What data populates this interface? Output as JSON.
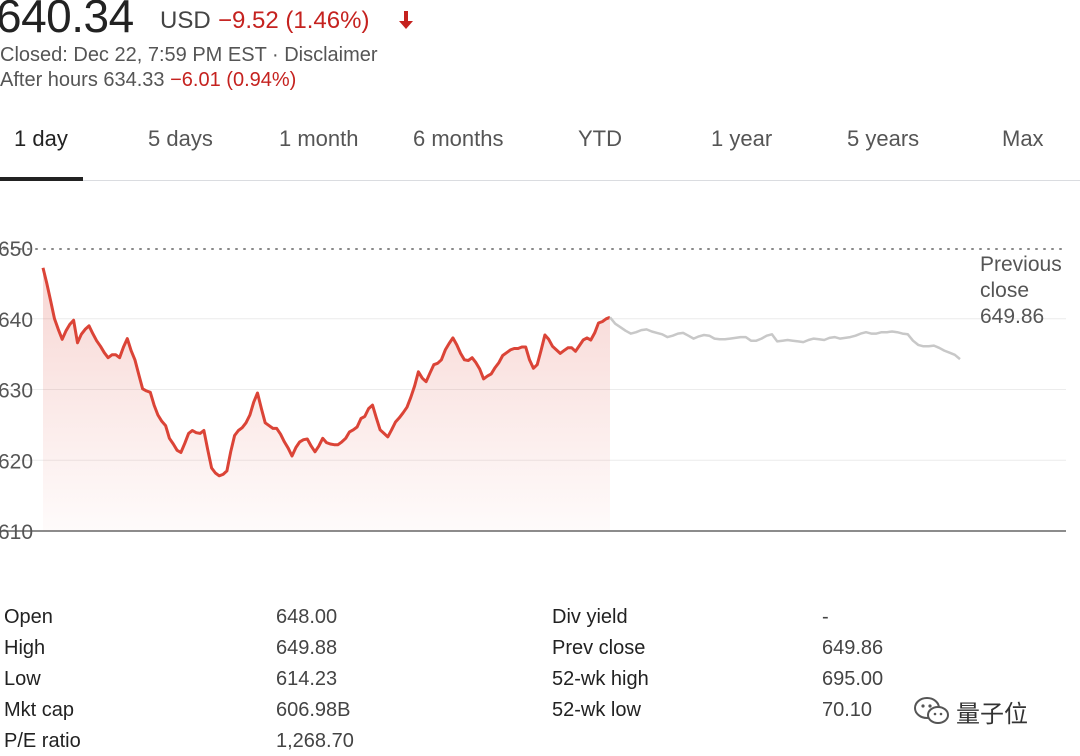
{
  "quote": {
    "price": "640.34",
    "currency": "USD",
    "change": "−9.52 (1.46%)",
    "direction_icon": "arrow-down-icon",
    "status": "Closed: Dec 22, 7:59 PM EST · Disclaimer",
    "after_hours_label": "After hours 634.33",
    "after_hours_change": "−6.01 (0.94%)"
  },
  "tabs": [
    {
      "label": "1 day",
      "active": true
    },
    {
      "label": "5 days"
    },
    {
      "label": "1 month"
    },
    {
      "label": "6 months"
    },
    {
      "label": "YTD"
    },
    {
      "label": "1 year"
    },
    {
      "label": "5 years"
    },
    {
      "label": "Max"
    }
  ],
  "chart_data": {
    "type": "line",
    "y_ticks": [
      "650",
      "640",
      "630",
      "620",
      "610"
    ],
    "ylim": [
      610,
      650
    ],
    "grid": true,
    "reference_line": {
      "value": 649.86,
      "label_line1": "Previous",
      "label_line2": "close",
      "label_value": "649.86"
    },
    "series": [
      {
        "session": "regular",
        "color": "#db4437",
        "values": [
          647.2,
          645.0,
          642.5,
          640.0,
          638.5,
          637.1,
          638.3,
          639.2,
          639.8,
          636.6,
          637.8,
          638.5,
          639.0,
          637.9,
          636.9,
          636.1,
          635.2,
          634.5,
          634.9,
          634.9,
          634.5,
          636.0,
          637.2,
          635.5,
          634.2,
          632.1,
          630.1,
          629.8,
          629.6,
          627.8,
          626.4,
          625.5,
          624.9,
          623.1,
          622.3,
          621.4,
          621.1,
          622.4,
          623.8,
          624.2,
          623.9,
          623.8,
          624.2,
          621.5,
          618.9,
          618.2,
          617.8,
          618.0,
          618.5,
          621.2,
          623.5,
          624.2,
          624.6,
          625.3,
          626.4,
          628.2,
          629.5,
          627.3,
          625.3,
          624.9,
          624.5,
          624.5,
          623.7,
          622.6,
          621.7,
          620.6,
          621.8,
          622.6,
          622.9,
          623.0,
          622.0,
          621.2,
          622.0,
          623.1,
          622.5,
          622.3,
          622.2,
          622.2,
          622.6,
          623.1,
          624.0,
          624.3,
          624.7,
          625.9,
          626.2,
          627.3,
          627.8,
          626.0,
          624.3,
          623.8,
          623.3,
          624.3,
          625.4,
          626.0,
          626.7,
          627.5,
          628.9,
          630.5,
          632.5,
          631.6,
          631.1,
          632.3,
          633.5,
          633.7,
          634.2,
          635.6,
          636.5,
          637.3,
          636.3,
          635.1,
          634.2,
          634.1,
          634.5,
          633.8,
          632.9,
          631.5,
          631.9,
          632.2,
          633.1,
          633.8,
          634.8,
          635.2,
          635.6,
          635.8,
          635.8,
          636.0,
          636.0,
          634.2,
          633.0,
          633.5,
          635.5,
          637.7,
          637.1,
          636.1,
          635.6,
          635.1,
          635.5,
          635.9,
          635.9,
          635.4,
          636.2,
          637.0,
          637.3,
          637.0,
          638.0,
          639.4,
          639.6,
          640.0,
          640.2
        ]
      },
      {
        "session": "after-hours",
        "color": "#c8c8c8",
        "values": [
          640.2,
          639.3,
          638.8,
          638.3,
          637.9,
          638.1,
          638.4,
          638.5,
          638.2,
          638.0,
          637.8,
          637.4,
          637.6,
          637.9,
          638.0,
          637.6,
          637.2,
          637.5,
          637.7,
          637.6,
          637.2,
          637.1,
          637.1,
          637.2,
          637.3,
          637.4,
          637.4,
          636.9,
          636.9,
          637.2,
          637.6,
          637.8,
          636.8,
          636.9,
          637.0,
          636.9,
          636.8,
          636.7,
          637.0,
          637.2,
          637.1,
          637.0,
          637.3,
          637.4,
          637.2,
          637.3,
          637.4,
          637.6,
          637.9,
          638.1,
          637.9,
          637.9,
          638.1,
          638.1,
          638.2,
          638.1,
          637.9,
          637.8,
          636.9,
          636.3,
          636.1,
          636.1,
          636.2,
          635.9,
          635.5,
          635.2,
          634.9,
          634.3
        ]
      }
    ]
  },
  "stats": {
    "left": [
      {
        "label": "Open",
        "value": "648.00"
      },
      {
        "label": "High",
        "value": "649.88"
      },
      {
        "label": "Low",
        "value": "614.23"
      },
      {
        "label": "Mkt cap",
        "value": "606.98B"
      },
      {
        "label": "P/E ratio",
        "value": "1,268.70"
      }
    ],
    "right": [
      {
        "label": "Div yield",
        "value": "-"
      },
      {
        "label": "Prev close",
        "value": "649.86"
      },
      {
        "label": "52-wk high",
        "value": "695.00"
      },
      {
        "label": "52-wk low",
        "value": "70.10"
      }
    ]
  },
  "watermark": {
    "text": "量子位",
    "icon": "wechat-icon"
  }
}
